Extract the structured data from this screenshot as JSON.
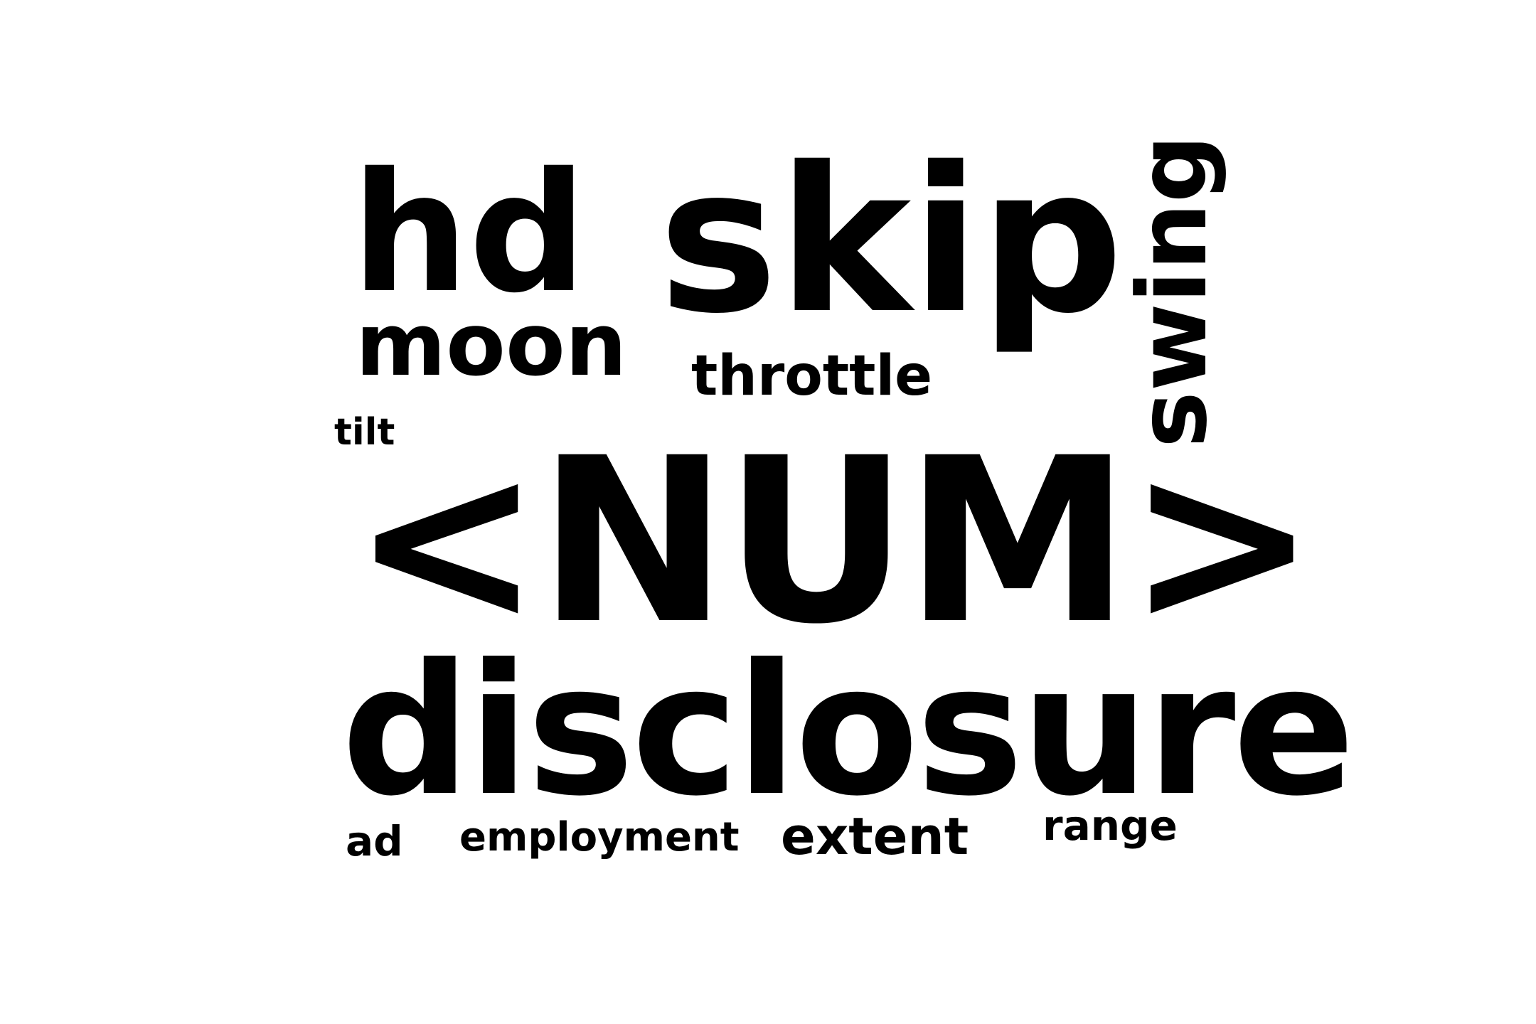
{
  "words": {
    "hd": "hd",
    "skip": "skip",
    "moon": "moon",
    "throttle": "throttle",
    "tilt": "tilt",
    "swing": "swing",
    "num": "<NUM>",
    "disclosure": "disclosure",
    "ad": "ad",
    "employment": "employment",
    "extent": "extent",
    "range": "range"
  },
  "colors": {
    "text": "#000000",
    "background": "#ffffff"
  }
}
